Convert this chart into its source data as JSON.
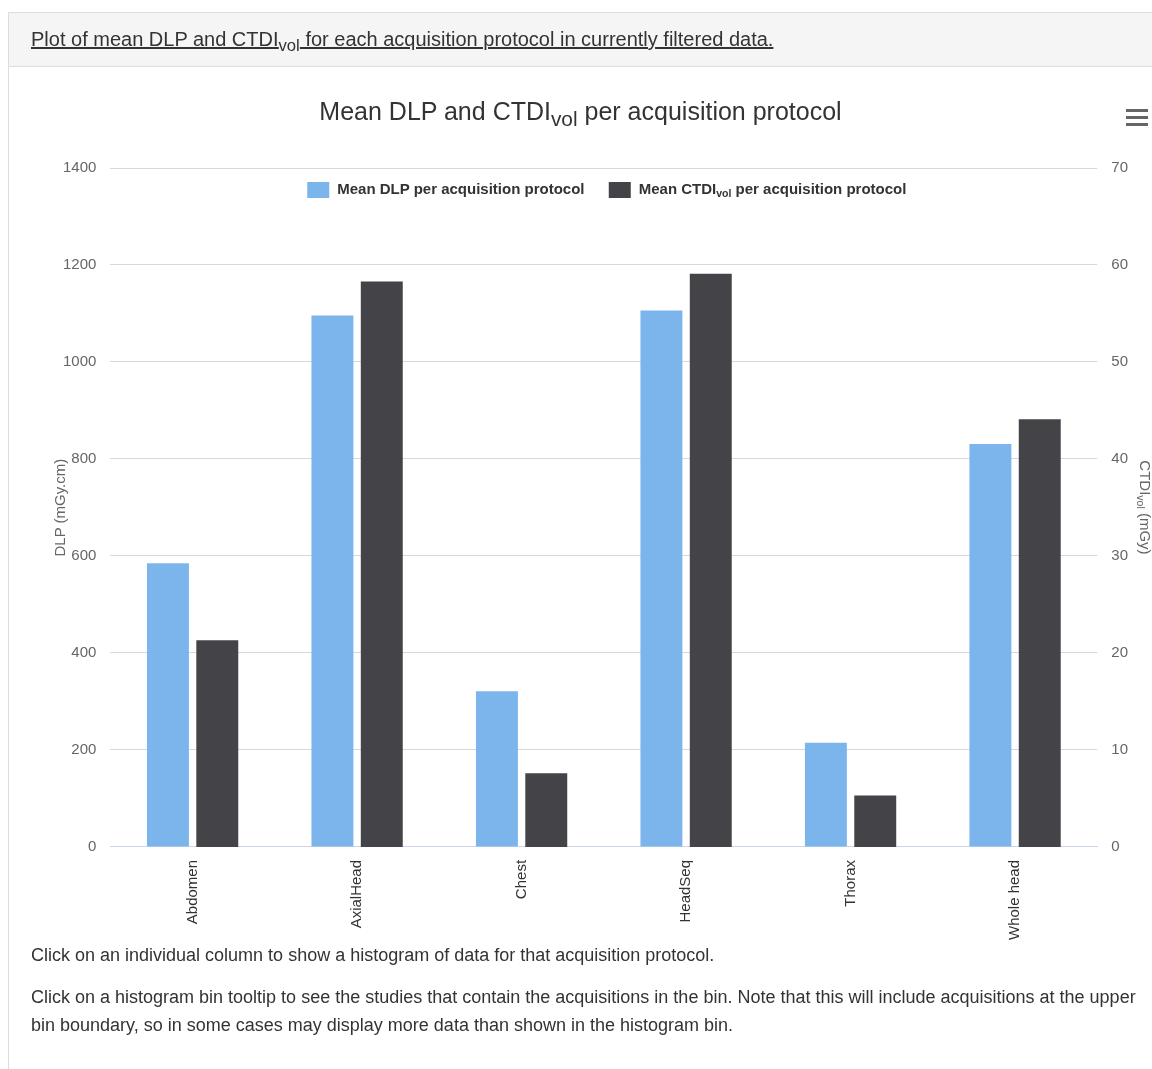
{
  "chart_data": {
    "type": "bar",
    "title": "Mean DLP and CTDI$_{vol}$ per acquisition protocol",
    "categories": [
      "Abdomen",
      "AxialHead",
      "Chest",
      "HeadSeq",
      "Thorax",
      "Whole head"
    ],
    "series": [
      {
        "name": "Mean DLP per acquisition protocol",
        "color": "#7cb5ec",
        "values": [
          585,
          1096,
          321,
          1106,
          215,
          831
        ]
      },
      {
        "name": "Mean CTDI$_{vol}$ per acquisition protocol",
        "color": "#434348",
        "axis": "y2",
        "values": [
          21.3,
          58.3,
          7.6,
          59.1,
          5.3,
          44.1
        ]
      }
    ],
    "ylabel": "DLP (mGy.cm)",
    "y2label": "CTDI$_{vol}$ (mGy)",
    "ylim": [
      0,
      1400
    ],
    "yticks": [
      0,
      200,
      400,
      600,
      800,
      1000,
      1200,
      1400
    ],
    "y2lim": [
      0,
      70
    ],
    "y2ticks": [
      0,
      10,
      20,
      30,
      40,
      50,
      60,
      70
    ],
    "grid": "y",
    "legend": "top",
    "annotations": [
      "Plot of mean DLP and CTDI$_{vol}$ for each acquisition protocol in currently filtered data.",
      "Click on an individual column to show a histogram of data for that acquisition protocol.",
      "Click on a histogram bin tooltip to see the studies that contain the acquisitions in the bin. Note that this will include acquisitions at the upper bin boundary, so in some cases may display more data than shown in the histogram bin."
    ]
  }
}
